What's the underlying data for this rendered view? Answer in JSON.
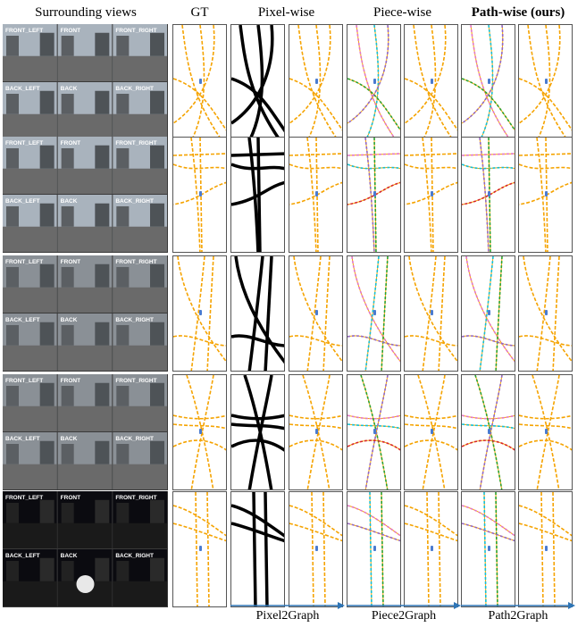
{
  "headers": {
    "surround": "Surrounding views",
    "gt": "GT",
    "pixel": "Pixel-wise",
    "piece": "Piece-wise",
    "path": "Path-wise (ours)"
  },
  "camera_labels": {
    "front_left": "FRONT_LEFT",
    "front": "FRONT",
    "front_right": "FRONT_RIGHT",
    "back_left": "BACK_LEFT",
    "back": "BACK",
    "back_right": "BACK_RIGHT"
  },
  "footers": {
    "pixel2graph": "Pixel2Graph",
    "piece2graph": "Piece2Graph",
    "path2graph": "Path2Graph"
  },
  "colors": {
    "lane": "#f5a300",
    "pixel_mask": "#000000",
    "arrow": "#2e75b6",
    "ego": "#4a7bd0",
    "piece_palette": [
      "#e377c2",
      "#17becf",
      "#2ca02c",
      "#9467bd",
      "#d62728",
      "#8c564b",
      "#bcbd22",
      "#1f77b4"
    ]
  },
  "rows": [
    {
      "scene": "day-urban"
    },
    {
      "scene": "day-overcast"
    },
    {
      "scene": "rainy-street"
    },
    {
      "scene": "rainy-junction"
    },
    {
      "scene": "night"
    }
  ]
}
